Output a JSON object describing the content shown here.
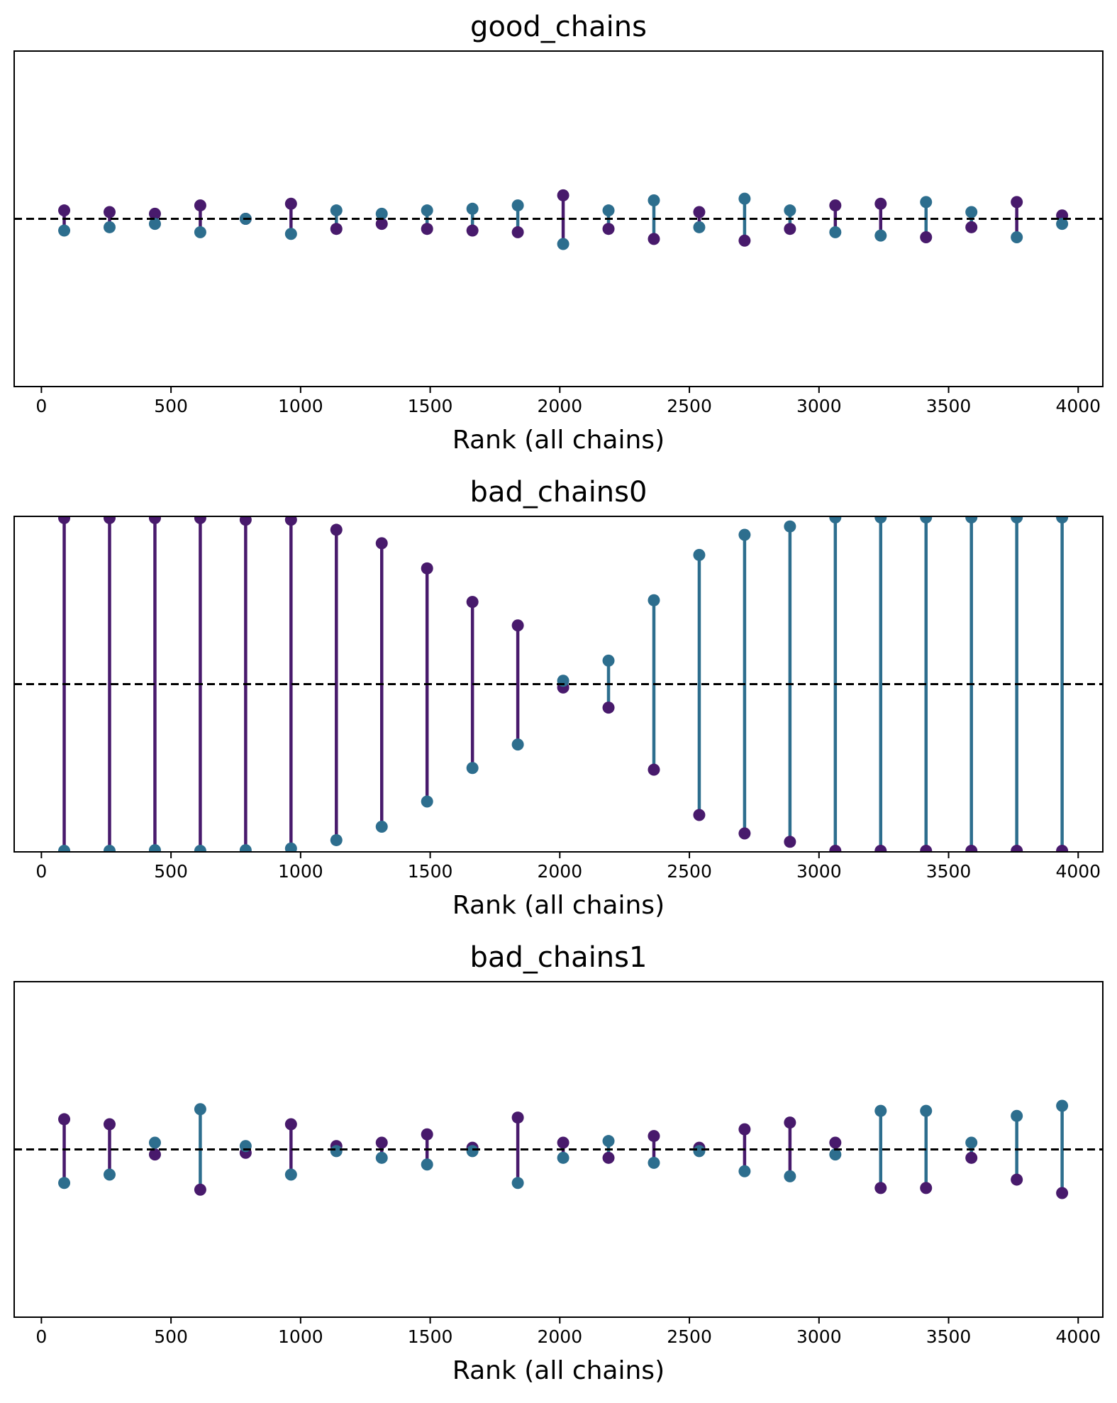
{
  "chart_data": [
    {
      "type": "scatter",
      "title": "good_chains",
      "xlabel": "Rank (all chains)",
      "xlim": [
        -105,
        4095
      ],
      "ylim": [
        -1,
        1
      ],
      "x_ticks": [
        0,
        500,
        1000,
        1500,
        2000,
        2500,
        3000,
        3500,
        4000
      ],
      "y_ticks": [],
      "reference_line": 0,
      "x": [
        88,
        263,
        438,
        613,
        788,
        963,
        1138,
        1313,
        1488,
        1663,
        1838,
        2013,
        2188,
        2363,
        2538,
        2713,
        2888,
        3063,
        3238,
        3413,
        3588,
        3763,
        3938
      ],
      "series": [
        {
          "color": "#481a6c",
          "values": [
            0.05,
            0.04,
            0.03,
            0.08,
            0.0,
            0.09,
            -0.06,
            -0.03,
            -0.06,
            -0.07,
            -0.08,
            0.14,
            -0.06,
            -0.12,
            0.04,
            -0.13,
            -0.06,
            0.08,
            0.09,
            -0.11,
            -0.05,
            0.1,
            0.02
          ]
        },
        {
          "color": "#2d6e8e",
          "values": [
            -0.07,
            -0.05,
            -0.03,
            -0.08,
            0.0,
            -0.09,
            0.05,
            0.03,
            0.05,
            0.06,
            0.08,
            -0.15,
            0.05,
            0.11,
            -0.05,
            0.12,
            0.05,
            -0.08,
            -0.1,
            0.1,
            0.04,
            -0.11,
            -0.03
          ]
        }
      ]
    },
    {
      "type": "scatter",
      "title": "bad_chains0",
      "xlabel": "Rank (all chains)",
      "xlim": [
        -105,
        4095
      ],
      "ylim": [
        -1,
        1
      ],
      "x_ticks": [
        0,
        500,
        1000,
        1500,
        2000,
        2500,
        3000,
        3500,
        4000
      ],
      "y_ticks": [],
      "reference_line": 0,
      "x": [
        88,
        263,
        438,
        613,
        788,
        963,
        1138,
        1313,
        1488,
        1663,
        1838,
        2013,
        2188,
        2363,
        2538,
        2713,
        2888,
        3063,
        3238,
        3413,
        3588,
        3763,
        3938
      ],
      "series": [
        {
          "color": "#481a6c",
          "values": [
            0.99,
            0.99,
            0.99,
            0.99,
            0.98,
            0.98,
            0.92,
            0.84,
            0.69,
            0.49,
            0.35,
            -0.02,
            -0.14,
            -0.51,
            -0.78,
            -0.89,
            -0.94,
            -1.0,
            -1.0,
            -1.0,
            -1.0,
            -1.0,
            -1.0
          ]
        },
        {
          "color": "#2d6e8e",
          "values": [
            -1.0,
            -1.0,
            -0.99,
            -1.0,
            -0.99,
            -0.98,
            -0.93,
            -0.85,
            -0.7,
            -0.5,
            -0.36,
            0.02,
            0.14,
            0.5,
            0.77,
            0.89,
            0.94,
            1.0,
            1.0,
            1.0,
            1.0,
            1.0,
            1.0
          ]
        }
      ]
    },
    {
      "type": "scatter",
      "title": "bad_chains1",
      "xlabel": "Rank (all chains)",
      "xlim": [
        -105,
        4095
      ],
      "ylim": [
        -1,
        1
      ],
      "x_ticks": [
        0,
        500,
        1000,
        1500,
        2000,
        2500,
        3000,
        3500,
        4000
      ],
      "y_ticks": [],
      "reference_line": 0,
      "x": [
        88,
        263,
        438,
        613,
        788,
        963,
        1138,
        1313,
        1488,
        1663,
        1838,
        2013,
        2188,
        2363,
        2538,
        2713,
        2888,
        3063,
        3238,
        3413,
        3588,
        3763,
        3938
      ],
      "series": [
        {
          "color": "#481a6c",
          "values": [
            0.18,
            0.15,
            -0.03,
            -0.24,
            -0.02,
            0.15,
            0.02,
            0.04,
            0.09,
            0.01,
            0.19,
            0.04,
            -0.05,
            0.08,
            0.01,
            0.12,
            0.16,
            0.04,
            -0.23,
            -0.23,
            -0.05,
            -0.18,
            -0.26
          ]
        },
        {
          "color": "#2d6e8e",
          "values": [
            -0.2,
            -0.15,
            0.04,
            0.24,
            0.02,
            -0.15,
            -0.01,
            -0.05,
            -0.09,
            -0.01,
            -0.2,
            -0.05,
            0.05,
            -0.08,
            -0.01,
            -0.13,
            -0.16,
            -0.03,
            0.23,
            0.23,
            0.04,
            0.2,
            0.26
          ]
        }
      ]
    }
  ]
}
